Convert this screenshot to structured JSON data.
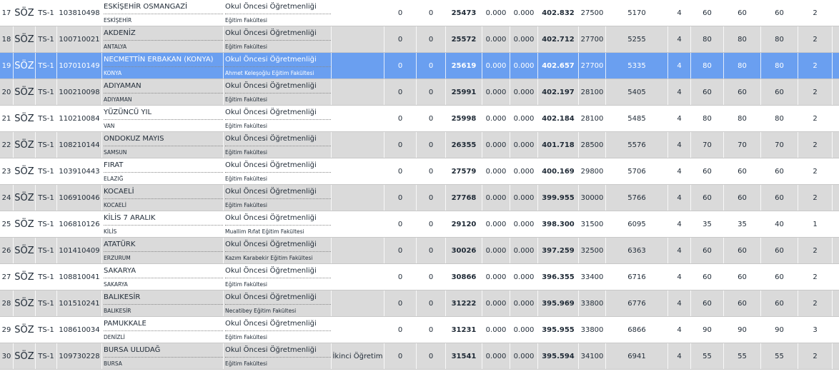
{
  "table": {
    "rows": [
      {
        "no": "17",
        "kind": "SÖZ",
        "score_type": "TS-1",
        "code": "103810498",
        "university": "ESKİŞEHİR OSMANGAZİ",
        "city": "ESKİŞEHİR",
        "program": "Okul Öncesi Öğretmenliği",
        "faculty": "Eğitim Fakültesi",
        "values": [
          "0",
          "0",
          "25473",
          "0.000",
          "0.000",
          "402.832",
          "27500",
          "5170",
          "4",
          "60",
          "60",
          "60",
          "2"
        ]
      },
      {
        "no": "18",
        "kind": "SÖZ",
        "score_type": "TS-1",
        "code": "100710021",
        "university": "AKDENİZ",
        "city": "ANTALYA",
        "program": "Okul Öncesi Öğretmenliği",
        "faculty": "Eğitim Fakültesi",
        "values": [
          "0",
          "0",
          "25572",
          "0.000",
          "0.000",
          "402.712",
          "27700",
          "5255",
          "4",
          "80",
          "80",
          "80",
          "2"
        ]
      },
      {
        "no": "19",
        "kind": "SÖZ",
        "score_type": "TS-1",
        "code": "107010149",
        "university": "NECMETTİN ERBAKAN (KONYA)",
        "city": "KONYA",
        "program": "Okul Öncesi Öğretmenliği",
        "faculty": "Ahmet Keleşoğlu Eğitim Fakültesi",
        "values": [
          "0",
          "0",
          "25619",
          "0.000",
          "0.000",
          "402.657",
          "27700",
          "5335",
          "4",
          "80",
          "80",
          "80",
          "2"
        ]
      },
      {
        "no": "20",
        "kind": "SÖZ",
        "score_type": "TS-1",
        "code": "100210098",
        "university": "ADIYAMAN",
        "city": "ADIYAMAN",
        "program": "Okul Öncesi Öğretmenliği",
        "faculty": "Eğitim Fakültesi",
        "values": [
          "0",
          "0",
          "25991",
          "0.000",
          "0.000",
          "402.197",
          "28100",
          "5405",
          "4",
          "60",
          "60",
          "60",
          "2"
        ]
      },
      {
        "no": "21",
        "kind": "SÖZ",
        "score_type": "TS-1",
        "code": "110210084",
        "university": "YÜZÜNCÜ YIL",
        "city": "VAN",
        "program": "Okul Öncesi Öğretmenliği",
        "faculty": "Eğitim Fakültesi",
        "values": [
          "0",
          "0",
          "25998",
          "0.000",
          "0.000",
          "402.184",
          "28100",
          "5485",
          "4",
          "80",
          "80",
          "80",
          "2"
        ]
      },
      {
        "no": "22",
        "kind": "SÖZ",
        "score_type": "TS-1",
        "code": "108210144",
        "university": "ONDOKUZ MAYIS",
        "city": "SAMSUN",
        "program": "Okul Öncesi Öğretmenliği",
        "faculty": "Eğitim Fakültesi",
        "values": [
          "0",
          "0",
          "26355",
          "0.000",
          "0.000",
          "401.718",
          "28500",
          "5576",
          "4",
          "70",
          "70",
          "70",
          "2"
        ]
      },
      {
        "no": "23",
        "kind": "SÖZ",
        "score_type": "TS-1",
        "code": "103910443",
        "university": "FIRAT",
        "city": "ELAZIĞ",
        "program": "Okul Öncesi Öğretmenliği",
        "faculty": "Eğitim Fakültesi",
        "values": [
          "0",
          "0",
          "27579",
          "0.000",
          "0.000",
          "400.169",
          "29800",
          "5706",
          "4",
          "60",
          "60",
          "60",
          "2"
        ]
      },
      {
        "no": "24",
        "kind": "SÖZ",
        "score_type": "TS-1",
        "code": "106910046",
        "university": "KOCAELİ",
        "city": "KOCAELİ",
        "program": "Okul Öncesi Öğretmenliği",
        "faculty": "Eğitim Fakültesi",
        "values": [
          "0",
          "0",
          "27768",
          "0.000",
          "0.000",
          "399.955",
          "30000",
          "5766",
          "4",
          "60",
          "60",
          "60",
          "2"
        ]
      },
      {
        "no": "25",
        "kind": "SÖZ",
        "score_type": "TS-1",
        "code": "106810126",
        "university": "KİLİS 7 ARALIK",
        "city": "KİLİS",
        "program": "Okul Öncesi Öğretmenliği",
        "faculty": "Muallim Rıfat Eğitim Fakültesi",
        "values": [
          "0",
          "0",
          "29120",
          "0.000",
          "0.000",
          "398.300",
          "31500",
          "6095",
          "4",
          "35",
          "35",
          "40",
          "1"
        ]
      },
      {
        "no": "26",
        "kind": "SÖZ",
        "score_type": "TS-1",
        "code": "101410409",
        "university": "ATATÜRK",
        "city": "ERZURUM",
        "program": "Okul Öncesi Öğretmenliği",
        "faculty": "Kazım Karabekir Eğitim Fakültesi",
        "values": [
          "0",
          "0",
          "30026",
          "0.000",
          "0.000",
          "397.259",
          "32500",
          "6363",
          "4",
          "60",
          "60",
          "60",
          "2"
        ]
      },
      {
        "no": "27",
        "kind": "SÖZ",
        "score_type": "TS-1",
        "code": "108810041",
        "university": "SAKARYA",
        "city": "SAKARYA",
        "program": "Okul Öncesi Öğretmenliği",
        "faculty": "Eğitim Fakültesi",
        "values": [
          "0",
          "0",
          "30866",
          "0.000",
          "0.000",
          "396.355",
          "33400",
          "6716",
          "4",
          "60",
          "60",
          "60",
          "2"
        ]
      },
      {
        "no": "28",
        "kind": "SÖZ",
        "score_type": "TS-1",
        "code": "101510241",
        "university": "BALIKESİR",
        "city": "BALIKESİR",
        "program": "Okul Öncesi Öğretmenliği",
        "faculty": "Necatibey Eğitim Fakültesi",
        "values": [
          "0",
          "0",
          "31222",
          "0.000",
          "0.000",
          "395.969",
          "33800",
          "6776",
          "4",
          "60",
          "60",
          "60",
          "2"
        ]
      },
      {
        "no": "29",
        "kind": "SÖZ",
        "score_type": "TS-1",
        "code": "108610034",
        "university": "PAMUKKALE",
        "city": "DENİZLİ",
        "program": "Okul Öncesi Öğretmenliği",
        "faculty": "Eğitim Fakültesi",
        "values": [
          "0",
          "0",
          "31231",
          "0.000",
          "0.000",
          "395.955",
          "33800",
          "6866",
          "4",
          "90",
          "90",
          "90",
          "3"
        ]
      },
      {
        "no": "30",
        "kind": "SÖZ",
        "score_type": "TS-1",
        "code": "109730228",
        "university": "BURSA ULUDAĞ",
        "city": "BURSA",
        "program": "Okul Öncesi Öğretmenliği",
        "faculty": "Eğitim Fakültesi",
        "note": "İkinci Öğretim",
        "values": [
          "0",
          "0",
          "31541",
          "0.000",
          "0.000",
          "395.594",
          "34100",
          "6941",
          "4",
          "55",
          "55",
          "55",
          "2"
        ]
      }
    ],
    "highlight": 2
  }
}
